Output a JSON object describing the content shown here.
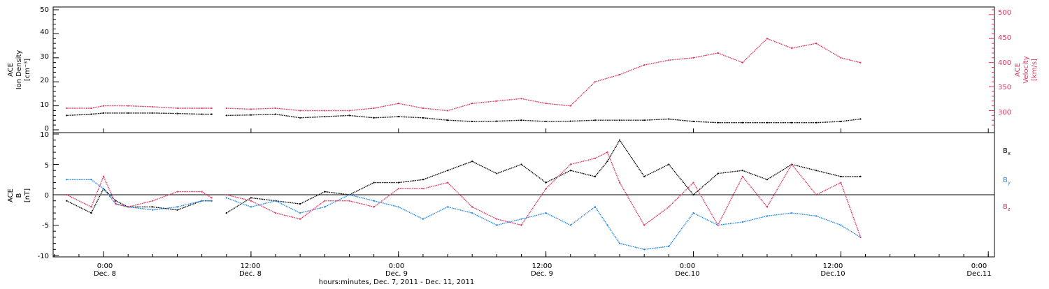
{
  "colors": {
    "black": "#000000",
    "red": "#d9345f",
    "blue": "#1f86e6"
  },
  "chart_data": [
    {
      "type": "line",
      "panel": "plasma",
      "ylabel_left": [
        "ACE",
        "Ion Density",
        "[cm⁻³]"
      ],
      "ylabel_right": [
        "ACE",
        "Velocity",
        "[km/s]"
      ],
      "ylim_left": [
        0,
        50
      ],
      "yticks_left": [
        "0",
        "10",
        "20",
        "30",
        "40",
        "50"
      ],
      "ylim_right": [
        260,
        510
      ],
      "yticks_right": [
        "300",
        "350",
        "400",
        "450",
        "500"
      ],
      "series": [
        {
          "name": "",
          "axis": "left",
          "color": "black",
          "x": [
            -3,
            -1,
            0,
            2,
            4,
            6,
            8,
            8.8,
            10,
            12,
            14,
            16,
            18,
            20,
            22,
            24,
            26,
            28,
            30,
            32,
            34,
            36,
            38,
            40,
            42,
            44,
            46,
            48,
            50,
            52,
            54,
            56,
            58,
            60,
            61.6
          ],
          "y": [
            6,
            6.5,
            7,
            7,
            7,
            6.8,
            6.5,
            6.5,
            6,
            6.2,
            6.5,
            5,
            5.5,
            6,
            5,
            5.5,
            5,
            4,
            3.5,
            3.6,
            4,
            3.5,
            3.6,
            4,
            4,
            4,
            4.5,
            3.5,
            3,
            3,
            3,
            3,
            3,
            3.5,
            4.5
          ]
        },
        {
          "name": "",
          "axis": "right",
          "color": "red",
          "x": [
            -3,
            -1,
            0,
            2,
            4,
            6,
            8,
            8.8,
            10,
            12,
            14,
            16,
            18,
            20,
            22,
            24,
            26,
            28,
            30,
            32,
            34,
            36,
            38,
            40,
            42,
            44,
            46,
            48,
            50,
            52,
            54,
            56,
            58,
            60,
            61.6
          ],
          "y": [
            305,
            305,
            310,
            310,
            308,
            305,
            305,
            305,
            305,
            303,
            305,
            300,
            300,
            300,
            305,
            315,
            305,
            300,
            315,
            320,
            325,
            315,
            310,
            360,
            375,
            395,
            405,
            410,
            420,
            400,
            450,
            430,
            440,
            410,
            400
          ]
        }
      ]
    },
    {
      "type": "line",
      "panel": "magnetic",
      "ylabel_left": [
        "ACE",
        "B",
        "[nT]"
      ],
      "ylim": [
        -10,
        10
      ],
      "yticks": [
        "-10",
        "-5",
        "0",
        "5",
        "10"
      ],
      "legend": [
        "Bx",
        "By",
        "Bz"
      ],
      "series": [
        {
          "name": "Bx",
          "color": "black",
          "x": [
            -3,
            -1,
            0,
            1,
            2,
            4,
            6,
            8,
            8.8,
            10,
            12,
            14,
            16,
            18,
            20,
            22,
            24,
            26,
            28,
            30,
            32,
            34,
            36,
            38,
            40,
            41,
            42,
            44,
            46,
            48,
            50,
            52,
            54,
            56,
            58,
            60,
            61.6
          ],
          "y": [
            -1,
            -3,
            1,
            -1,
            -2,
            -2,
            -2.5,
            -1,
            -1,
            -3,
            -0.5,
            -1,
            -1.5,
            0.5,
            0,
            2,
            2,
            2.5,
            4,
            5.5,
            3.5,
            5,
            2,
            4,
            3,
            5.5,
            9,
            3,
            5,
            0,
            3.5,
            4,
            2.5,
            5,
            4,
            3,
            3
          ]
        },
        {
          "name": "By",
          "color": "blue",
          "x": [
            -3,
            -1,
            0,
            1,
            2,
            4,
            6,
            8,
            8.8,
            10,
            12,
            14,
            16,
            18,
            20,
            22,
            24,
            26,
            28,
            30,
            32,
            34,
            36,
            38,
            40,
            41,
            42,
            44,
            46,
            48,
            50,
            52,
            54,
            56,
            58,
            60,
            61.6
          ],
          "y": [
            2.5,
            2.5,
            1,
            -1.5,
            -2,
            -2.5,
            -2,
            -1,
            -1,
            -0.5,
            -2,
            -1,
            -3,
            -2,
            0,
            -1,
            -2,
            -4,
            -2,
            -3,
            -5,
            -4,
            -3,
            -5,
            -2,
            -5,
            -8,
            -9,
            -8.5,
            -3,
            -5,
            -4.5,
            -3.5,
            -3,
            -3.5,
            -5,
            -7
          ]
        },
        {
          "name": "Bz",
          "color": "red",
          "x": [
            -3,
            -1,
            0,
            1,
            2,
            4,
            6,
            8,
            8.8,
            10,
            12,
            14,
            16,
            18,
            20,
            22,
            24,
            26,
            28,
            30,
            32,
            34,
            36,
            38,
            40,
            41,
            42,
            44,
            46,
            48,
            50,
            52,
            54,
            56,
            58,
            60,
            61.6
          ],
          "y": [
            0,
            -2,
            3,
            -1.5,
            -2,
            -1,
            0.5,
            0.5,
            -0.5,
            0,
            -1,
            -3,
            -4,
            -1,
            -1,
            -2,
            1,
            1,
            2,
            -2,
            -4,
            -5,
            1,
            5,
            6,
            7,
            2,
            -5,
            -2,
            2,
            -5,
            3,
            -2,
            5,
            0,
            2,
            -7
          ]
        }
      ]
    }
  ],
  "x_axis": {
    "xlim": [
      -4.1,
      72.5
    ],
    "tick_times": [
      "0:00",
      "12:00",
      "0:00",
      "12:00",
      "0:00",
      "12:00",
      "0:00"
    ],
    "tick_dates": [
      "Dec. 8",
      "Dec. 8",
      "Dec. 9",
      "Dec. 9",
      "Dec.10",
      "Dec.10",
      "Dec.11"
    ],
    "tick_hours": [
      0,
      12,
      24,
      36,
      48,
      60,
      72
    ],
    "xlabel": "hours:minutes, Dec. 7, 2011 - Dec. 11, 2011"
  }
}
